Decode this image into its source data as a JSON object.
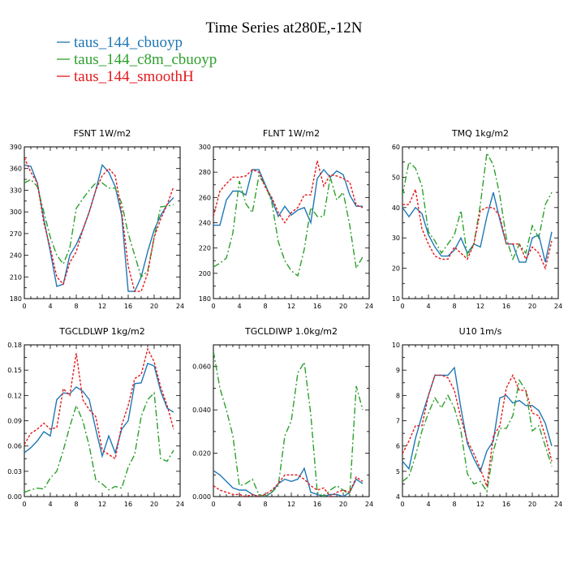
{
  "figure": {
    "title": "Time Series at280E,-12N"
  },
  "legend": [
    {
      "name": "taus_144_cbuoyp",
      "color": "#1f77b4",
      "dash": "none"
    },
    {
      "name": "taus_144_c8m_cbuoyp",
      "color": "#2ca02c",
      "dash": "8,3,2,3"
    },
    {
      "name": "taus_144_smoothH",
      "color": "#e31a1c",
      "dash": "3,2"
    }
  ],
  "chart_data": [
    {
      "type": "line",
      "title": "FSNT   1W/m2",
      "x": [
        0,
        1,
        2,
        3,
        4,
        5,
        6,
        7,
        8,
        9,
        10,
        11,
        12,
        13,
        14,
        15,
        16,
        17,
        18,
        19,
        20,
        21,
        22,
        23
      ],
      "xticks": [
        0,
        4,
        8,
        12,
        16,
        20,
        24
      ],
      "xlim": [
        0,
        24
      ],
      "ylim": [
        180,
        390
      ],
      "yticks": [
        "180",
        "210",
        "240",
        "270",
        "300",
        "330",
        "360",
        "390"
      ],
      "series": [
        {
          "name": "taus_144_cbuoyp",
          "values": [
            365,
            363,
            340,
            290,
            245,
            197,
            200,
            240,
            255,
            275,
            300,
            330,
            365,
            355,
            335,
            295,
            190,
            190,
            210,
            245,
            275,
            295,
            310,
            320
          ]
        },
        {
          "name": "taus_144_c8m_cbuoyp",
          "values": [
            340,
            345,
            335,
            300,
            265,
            240,
            228,
            250,
            305,
            318,
            330,
            340,
            340,
            333,
            333,
            312,
            270,
            240,
            210,
            218,
            265,
            307,
            308,
            310
          ]
        },
        {
          "name": "taus_144_smoothH",
          "values": [
            375,
            355,
            340,
            285,
            250,
            210,
            200,
            230,
            245,
            275,
            300,
            330,
            350,
            360,
            350,
            300,
            225,
            190,
            190,
            215,
            265,
            290,
            310,
            335
          ]
        }
      ]
    },
    {
      "type": "line",
      "title": "FLNT   1W/m2",
      "x": [
        0,
        1,
        2,
        3,
        4,
        5,
        6,
        7,
        8,
        9,
        10,
        11,
        12,
        13,
        14,
        15,
        16,
        17,
        18,
        19,
        20,
        21,
        22,
        23
      ],
      "xticks": [
        0,
        4,
        8,
        12,
        16,
        20,
        24
      ],
      "xlim": [
        0,
        24
      ],
      "ylim": [
        180,
        300
      ],
      "yticks": [
        "180",
        "200",
        "220",
        "240",
        "260",
        "280",
        "300"
      ],
      "series": [
        {
          "name": "taus_144_cbuoyp",
          "values": [
            238,
            238,
            258,
            265,
            265,
            262,
            282,
            282,
            270,
            258,
            245,
            253,
            246,
            250,
            252,
            240,
            275,
            282,
            276,
            281,
            278,
            262,
            253,
            253
          ]
        },
        {
          "name": "taus_144_c8m_cbuoyp",
          "values": [
            205,
            208,
            212,
            232,
            273,
            255,
            248,
            277,
            270,
            256,
            225,
            210,
            202,
            198,
            219,
            252,
            245,
            245,
            276,
            258,
            264,
            238,
            204,
            213
          ]
        },
        {
          "name": "taus_144_smoothH",
          "values": [
            245,
            265,
            271,
            276,
            276,
            277,
            282,
            280,
            268,
            260,
            248,
            240,
            248,
            252,
            262,
            262,
            289,
            269,
            278,
            277,
            275,
            272,
            254,
            252
          ]
        }
      ]
    },
    {
      "type": "line",
      "title": "TMQ   1kg/m2",
      "x": [
        0,
        1,
        2,
        3,
        4,
        5,
        6,
        7,
        8,
        9,
        10,
        11,
        12,
        13,
        14,
        15,
        16,
        17,
        18,
        19,
        20,
        21,
        22,
        23
      ],
      "xticks": [
        0,
        4,
        8,
        12,
        16,
        20,
        24
      ],
      "xlim": [
        0,
        24
      ],
      "ylim": [
        10,
        60
      ],
      "yticks": [
        "10",
        "20",
        "30",
        "40",
        "50",
        "60"
      ],
      "series": [
        {
          "name": "taus_144_cbuoyp",
          "values": [
            40,
            37,
            40,
            38,
            31,
            27,
            24,
            24,
            26,
            30,
            25,
            28,
            27,
            37,
            45,
            36,
            28,
            28,
            22,
            22,
            30,
            31,
            22,
            32
          ]
        },
        {
          "name": "taus_144_c8m_cbuoyp",
          "values": [
            44,
            55,
            53,
            47,
            32,
            29,
            25,
            28,
            31,
            39,
            24,
            28,
            41,
            58,
            54,
            44,
            30,
            23,
            28,
            25,
            34,
            30,
            41,
            45
          ]
        },
        {
          "name": "taus_144_smoothH",
          "values": [
            41,
            41,
            46,
            33,
            28,
            24,
            23,
            23,
            27,
            25,
            23,
            28,
            39,
            40,
            40,
            37,
            28,
            28,
            28,
            23,
            27,
            25,
            20,
            29
          ]
        }
      ]
    },
    {
      "type": "line",
      "title": "TGCLDLWP   1kg/m2",
      "x": [
        0,
        1,
        2,
        3,
        4,
        5,
        6,
        7,
        8,
        9,
        10,
        11,
        12,
        13,
        14,
        15,
        16,
        17,
        18,
        19,
        20,
        21,
        22,
        23
      ],
      "xticks": [
        0,
        4,
        8,
        12,
        16,
        20,
        24
      ],
      "xlim": [
        0,
        24
      ],
      "ylim": [
        0,
        0.18
      ],
      "yticks": [
        "0.00",
        "0.03",
        "0.06",
        "0.09",
        "0.12",
        "0.15",
        "0.18"
      ],
      "series": [
        {
          "name": "taus_144_cbuoyp",
          "values": [
            0.052,
            0.058,
            0.066,
            0.077,
            0.072,
            0.115,
            0.123,
            0.122,
            0.13,
            0.125,
            0.115,
            0.08,
            0.048,
            0.072,
            0.052,
            0.08,
            0.09,
            0.134,
            0.135,
            0.158,
            0.155,
            0.125,
            0.105,
            0.1
          ]
        },
        {
          "name": "taus_144_c8m_cbuoyp",
          "values": [
            0.005,
            0.008,
            0.01,
            0.009,
            0.022,
            0.03,
            0.055,
            0.083,
            0.108,
            0.09,
            0.06,
            0.02,
            0.015,
            0.008,
            0.012,
            0.01,
            0.035,
            0.05,
            0.095,
            0.115,
            0.123,
            0.045,
            0.042,
            0.055
          ]
        },
        {
          "name": "taus_144_smoothH",
          "values": [
            0.062,
            0.075,
            0.08,
            0.087,
            0.08,
            0.082,
            0.128,
            0.12,
            0.17,
            0.115,
            0.103,
            0.095,
            0.055,
            0.05,
            0.045,
            0.085,
            0.108,
            0.14,
            0.145,
            0.175,
            0.16,
            0.13,
            0.108,
            0.08
          ]
        }
      ]
    },
    {
      "type": "line",
      "title": "TGCLDIWP   1.0kg/m2",
      "x": [
        0,
        1,
        2,
        3,
        4,
        5,
        6,
        7,
        8,
        9,
        10,
        11,
        12,
        13,
        14,
        15,
        16,
        17,
        18,
        19,
        20,
        21,
        22,
        23
      ],
      "xticks": [
        0,
        4,
        8,
        12,
        16,
        20,
        24
      ],
      "xlim": [
        0,
        24
      ],
      "ylim": [
        0,
        0.07
      ],
      "yticks": [
        "0.000",
        "0.020",
        "0.040",
        "0.060"
      ],
      "series": [
        {
          "name": "taus_144_cbuoyp",
          "values": [
            0.012,
            0.01,
            0.007,
            0.004,
            0.003,
            0.003,
            0.001,
            0.0,
            0.0,
            0.002,
            0.006,
            0.008,
            0.007,
            0.008,
            0.013,
            0.002,
            0.001,
            0.0,
            0.001,
            0.001,
            0.0,
            0.002,
            0.008,
            0.006
          ]
        },
        {
          "name": "taus_144_c8m_cbuoyp",
          "values": [
            0.067,
            0.05,
            0.04,
            0.028,
            0.005,
            0.006,
            0.008,
            0.001,
            0.0,
            0.002,
            0.005,
            0.028,
            0.035,
            0.057,
            0.062,
            0.038,
            0.002,
            0.0,
            0.003,
            0.005,
            0.003,
            0.001,
            0.051,
            0.04
          ]
        },
        {
          "name": "taus_144_smoothH",
          "values": [
            0.005,
            0.003,
            0.002,
            0.001,
            0.001,
            0.0,
            0.001,
            0.0,
            0.001,
            0.003,
            0.006,
            0.01,
            0.01,
            0.01,
            0.008,
            0.005,
            0.003,
            0.004,
            0.0,
            0.002,
            0.003,
            0.002,
            0.009,
            0.007
          ]
        }
      ]
    },
    {
      "type": "line",
      "title": "U10   1m/s",
      "x": [
        0,
        1,
        2,
        3,
        4,
        5,
        6,
        7,
        8,
        9,
        10,
        11,
        12,
        13,
        14,
        15,
        16,
        17,
        18,
        19,
        20,
        21,
        22,
        23
      ],
      "xticks": [
        0,
        4,
        8,
        12,
        16,
        20,
        24
      ],
      "xlim": [
        0,
        24
      ],
      "ylim": [
        4,
        10
      ],
      "yticks": [
        "4",
        "5",
        "6",
        "7",
        "8",
        "9",
        "10"
      ],
      "series": [
        {
          "name": "taus_144_cbuoyp",
          "values": [
            5.4,
            5.1,
            6.3,
            7.2,
            8.0,
            8.8,
            8.8,
            8.8,
            9.1,
            7.5,
            6.1,
            5.5,
            5.0,
            5.8,
            6.2,
            7.9,
            8.0,
            7.7,
            7.8,
            7.6,
            7.6,
            7.4,
            6.9,
            6.0
          ]
        },
        {
          "name": "taus_144_c8m_cbuoyp",
          "values": [
            4.6,
            4.8,
            5.6,
            6.6,
            7.3,
            7.9,
            7.5,
            8.0,
            7.5,
            6.6,
            4.9,
            4.5,
            4.6,
            4.2,
            5.8,
            6.7,
            6.7,
            7.2,
            8.6,
            8.2,
            6.6,
            6.8,
            6.0,
            5.2
          ]
        },
        {
          "name": "taus_144_smoothH",
          "values": [
            5.7,
            6.2,
            6.8,
            6.8,
            8.0,
            8.8,
            8.8,
            8.7,
            8.2,
            7.1,
            6.2,
            5.7,
            5.1,
            4.4,
            6.4,
            6.8,
            8.3,
            8.8,
            8.2,
            8.2,
            7.3,
            7.2,
            6.4,
            5.4
          ]
        }
      ]
    }
  ]
}
